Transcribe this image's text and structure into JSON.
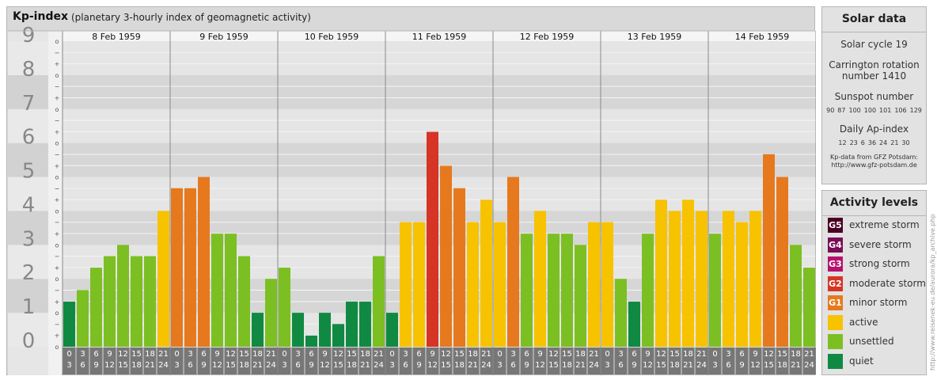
{
  "header": {
    "title": "Kp-index",
    "subtitle": "(planetary 3-hourly index of geomagnetic activity)"
  },
  "chart_data": {
    "type": "bar",
    "title": "Kp-index",
    "subtitle": "(planetary 3-hourly index of geomagnetic activity)",
    "ylim": [
      0,
      9
    ],
    "y_ticks": [
      "0",
      "1",
      "2",
      "3",
      "4",
      "5",
      "6",
      "7",
      "8",
      "9"
    ],
    "minor_tick_labels": [
      "+",
      "o",
      "−"
    ],
    "days": [
      "8 Feb 1959",
      "9 Feb 1959",
      "10 Feb 1959",
      "11 Feb 1959",
      "12 Feb 1959",
      "13 Feb 1959",
      "14 Feb 1959"
    ],
    "slots": [
      [
        "0",
        "3"
      ],
      [
        "3",
        "6"
      ],
      [
        "6",
        "9"
      ],
      [
        "9",
        "12"
      ],
      [
        "12",
        "15"
      ],
      [
        "15",
        "18"
      ],
      [
        "18",
        "21"
      ],
      [
        "21",
        "24"
      ]
    ],
    "values": [
      [
        1.33,
        1.67,
        2.33,
        2.67,
        3.0,
        2.67,
        2.67,
        4.0
      ],
      [
        4.67,
        4.67,
        5.0,
        3.33,
        3.33,
        2.67,
        1.0,
        2.0
      ],
      [
        2.33,
        1.0,
        0.33,
        1.0,
        0.67,
        1.33,
        1.33,
        2.67
      ],
      [
        1.0,
        3.67,
        3.67,
        6.33,
        5.33,
        4.67,
        3.67,
        4.33
      ],
      [
        3.67,
        5.0,
        3.33,
        4.0,
        3.33,
        3.33,
        3.0,
        3.67
      ],
      [
        3.67,
        2.0,
        1.33,
        3.33,
        4.33,
        4.0,
        4.33,
        4.0
      ],
      [
        3.33,
        4.0,
        3.67,
        4.0,
        5.67,
        5.0,
        3.0,
        2.33
      ]
    ],
    "grid": true,
    "legend": "right"
  },
  "solar": {
    "title": "Solar data",
    "cycle": "Solar cycle 19",
    "carrington_line1": "Carrington rotation",
    "carrington_line2": "number 1410",
    "sunspot_title": "Sunspot number",
    "sunspot_values": [
      "90",
      "87",
      "100",
      "100",
      "101",
      "106",
      "129"
    ],
    "ap_title": "Daily Ap-index",
    "ap_values": [
      "12",
      "23",
      "6",
      "36",
      "24",
      "21",
      "30"
    ],
    "source_line1": "Kp-data from GFZ Potsdam:",
    "source_line2": "http://www.gfz-potsdam.de"
  },
  "activity": {
    "title": "Activity levels",
    "levels": [
      {
        "badge": "G5",
        "label": "extreme storm",
        "color": "#4a0024"
      },
      {
        "badge": "G4",
        "label": "severe storm",
        "color": "#7a0d55"
      },
      {
        "badge": "G3",
        "label": "strong storm",
        "color": "#b5126e"
      },
      {
        "badge": "G2",
        "label": "moderate storm",
        "color": "#d63424"
      },
      {
        "badge": "G1",
        "label": "minor storm",
        "color": "#e6791d"
      },
      {
        "badge": "",
        "label": "active",
        "color": "#f7c200"
      },
      {
        "badge": "",
        "label": "unsettled",
        "color": "#7cbf23"
      },
      {
        "badge": "",
        "label": "quiet",
        "color": "#108a42"
      }
    ]
  },
  "credit": "http://www.reisenek-eu.de/aurora/kp_archive.php"
}
